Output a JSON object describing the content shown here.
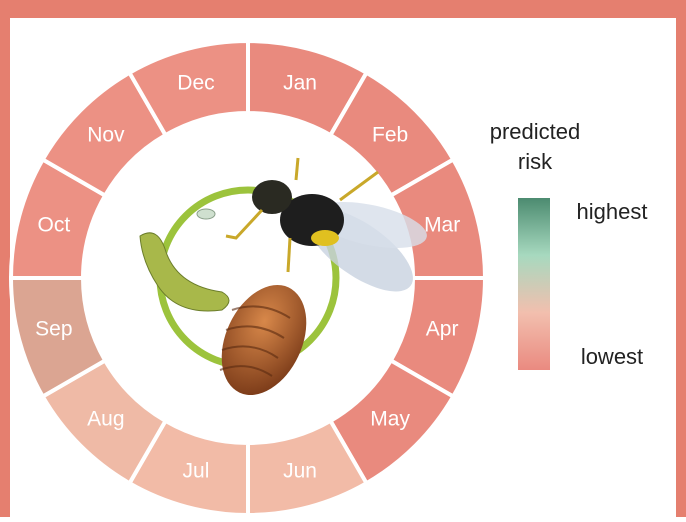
{
  "ring": {
    "segments": [
      {
        "label": "Jan",
        "color": "#e98a7e"
      },
      {
        "label": "Feb",
        "color": "#e98a7e"
      },
      {
        "label": "Mar",
        "color": "#e98a7e"
      },
      {
        "label": "Apr",
        "color": "#e98a7e"
      },
      {
        "label": "May",
        "color": "#e98a7e"
      },
      {
        "label": "Jun",
        "color": "#f2bba7"
      },
      {
        "label": "Jul",
        "color": "#f2bba7"
      },
      {
        "label": "Aug",
        "color": "#efbaa6"
      },
      {
        "label": "Sep",
        "color": "#dba592"
      },
      {
        "label": "Oct",
        "color": "#ec9184"
      },
      {
        "label": "Nov",
        "color": "#ec9184"
      },
      {
        "label": "Dec",
        "color": "#ec9184"
      }
    ]
  },
  "legend": {
    "title_lines": [
      "predicted",
      "risk"
    ],
    "high": "highest",
    "low": "lowest",
    "gradient": [
      "#4c8b70",
      "#a7d9bf",
      "#f2bfae",
      "#ea8a80"
    ]
  }
}
